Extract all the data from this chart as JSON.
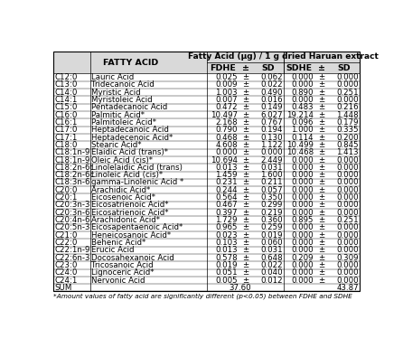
{
  "title_main": "Fatty Acid (μg) / 1 g dried Haruan extract",
  "col_header_left": "FATTY ACID",
  "col_headers": [
    "FDHE",
    "±",
    "SD",
    "SDHE",
    "±",
    "SD"
  ],
  "rows": [
    [
      "C12:0",
      "Lauric Acid",
      "0.025",
      "±",
      "0.062",
      "0.000",
      "±",
      "0.000"
    ],
    [
      "C13:0",
      "Tridecanoic Acid",
      "0.009",
      "±",
      "0.022",
      "0.000",
      "±",
      "0.000"
    ],
    [
      "C14:0",
      "Myristic Acid",
      "1.003",
      "±",
      "0.490",
      "0.890",
      "±",
      "0.251"
    ],
    [
      "C14:1",
      "Myristoleic Acid",
      "0.007",
      "±",
      "0.016",
      "0.000",
      "±",
      "0.000"
    ],
    [
      "C15:0",
      "Pentadecanoic Acid",
      "0.472",
      "±",
      "0.149",
      "0.483",
      "±",
      "0.216"
    ],
    [
      "C16:0",
      "Palmitic Acid*",
      "10.497",
      "±",
      "6.027",
      "19.214",
      "±",
      "1.448"
    ],
    [
      "C16:1",
      "Palmitoleic Acid*",
      "2.168",
      "±",
      "0.767",
      "0.096",
      "±",
      "0.179"
    ],
    [
      "C17:0",
      "Heptadecanoic Acid",
      "0.790",
      "±",
      "0.194",
      "1.000",
      "±",
      "0.335"
    ],
    [
      "C17:1",
      "Heptadecenoic Acid*",
      "0.468",
      "±",
      "0.130",
      "0.114",
      "±",
      "0.200"
    ],
    [
      "C18:0",
      "Stearic Acid*",
      "4.608",
      "±",
      "1.122",
      "10.499",
      "±",
      "0.845"
    ],
    [
      "C18:1n-9",
      "Elaidic Acid (trans)*",
      "0.000",
      "±",
      "0.000",
      "10.468",
      "±",
      "1.413"
    ],
    [
      "C18:1n-9",
      "Oleic Acid (cis)*",
      "10.694",
      "±",
      "2.449",
      "0.000",
      "±",
      "0.000"
    ],
    [
      "C18:2n-6t",
      "Linolelaidic Acid (trans)",
      "0.013",
      "±",
      "0.031",
      "0.000",
      "±",
      "0.000"
    ],
    [
      "C18:2n-6c",
      "Linoleic Acid (cis)*",
      "1.459",
      "±",
      "1.600",
      "0.000",
      "±",
      "0.000"
    ],
    [
      "C18:3n-6",
      "gamma-Linolenic Acid *",
      "0.231",
      "±",
      "0.211",
      "0.000",
      "±",
      "0.000"
    ],
    [
      "C20:0",
      "Arachidic Acid*",
      "0.244",
      "±",
      "0.057",
      "0.000",
      "±",
      "0.000"
    ],
    [
      "C20:1",
      "Eicosenoic Acid*",
      "0.564",
      "±",
      "0.350",
      "0.000",
      "±",
      "0.000"
    ],
    [
      "C20:3n-3",
      "Eicosatrienoic Acid*",
      "0.467",
      "±",
      "0.299",
      "0.000",
      "±",
      "0.000"
    ],
    [
      "C20:3n-6",
      "Eicosatrienoic Acid*",
      "0.397",
      "±",
      "0.219",
      "0.000",
      "±",
      "0.000"
    ],
    [
      "C20:4n-6",
      "Arachidonic Acid*",
      "1.729",
      "±",
      "0.360",
      "0.895",
      "±",
      "0.251"
    ],
    [
      "C20:5n-3",
      "Eicosapentaenoic Acid*",
      "0.965",
      "±",
      "0.259",
      "0.000",
      "±",
      "0.000"
    ],
    [
      "C21:0",
      "Heneicosanoic Acid*",
      "0.023",
      "±",
      "0.019",
      "0.000",
      "±",
      "0.000"
    ],
    [
      "C22:0",
      "Behenic Acid*",
      "0.103",
      "±",
      "0.060",
      "0.000",
      "±",
      "0.000"
    ],
    [
      "C22:1n-9",
      "Erucic Acid",
      "0.013",
      "±",
      "0.031",
      "0.000",
      "±",
      "0.000"
    ],
    [
      "C22:6n-3",
      "Docosahexanoic Acid",
      "0.578",
      "±",
      "0.648",
      "0.209",
      "±",
      "0.309"
    ],
    [
      "C23:0",
      "Tricosanoic Acid",
      "0.019",
      "±",
      "0.022",
      "0.000",
      "±",
      "0.000"
    ],
    [
      "C24:0",
      "Lignoceric Acid*",
      "0.051",
      "±",
      "0.040",
      "0.000",
      "±",
      "0.000"
    ],
    [
      "C24:1",
      "Nervonic Acid",
      "0.005",
      "±",
      "0.012",
      "0.000",
      "±",
      "0.000"
    ],
    [
      "SUM",
      "",
      "37.60",
      "",
      "",
      "43.87",
      "",
      ""
    ]
  ],
  "footnote": "*Amount values of fatty acid are significantly different (p<0.05) between FDHE and SDHE",
  "bg_color": "#ffffff",
  "header_bg": "#d9d9d9",
  "font_size": 6.2,
  "header_font_size": 6.8
}
